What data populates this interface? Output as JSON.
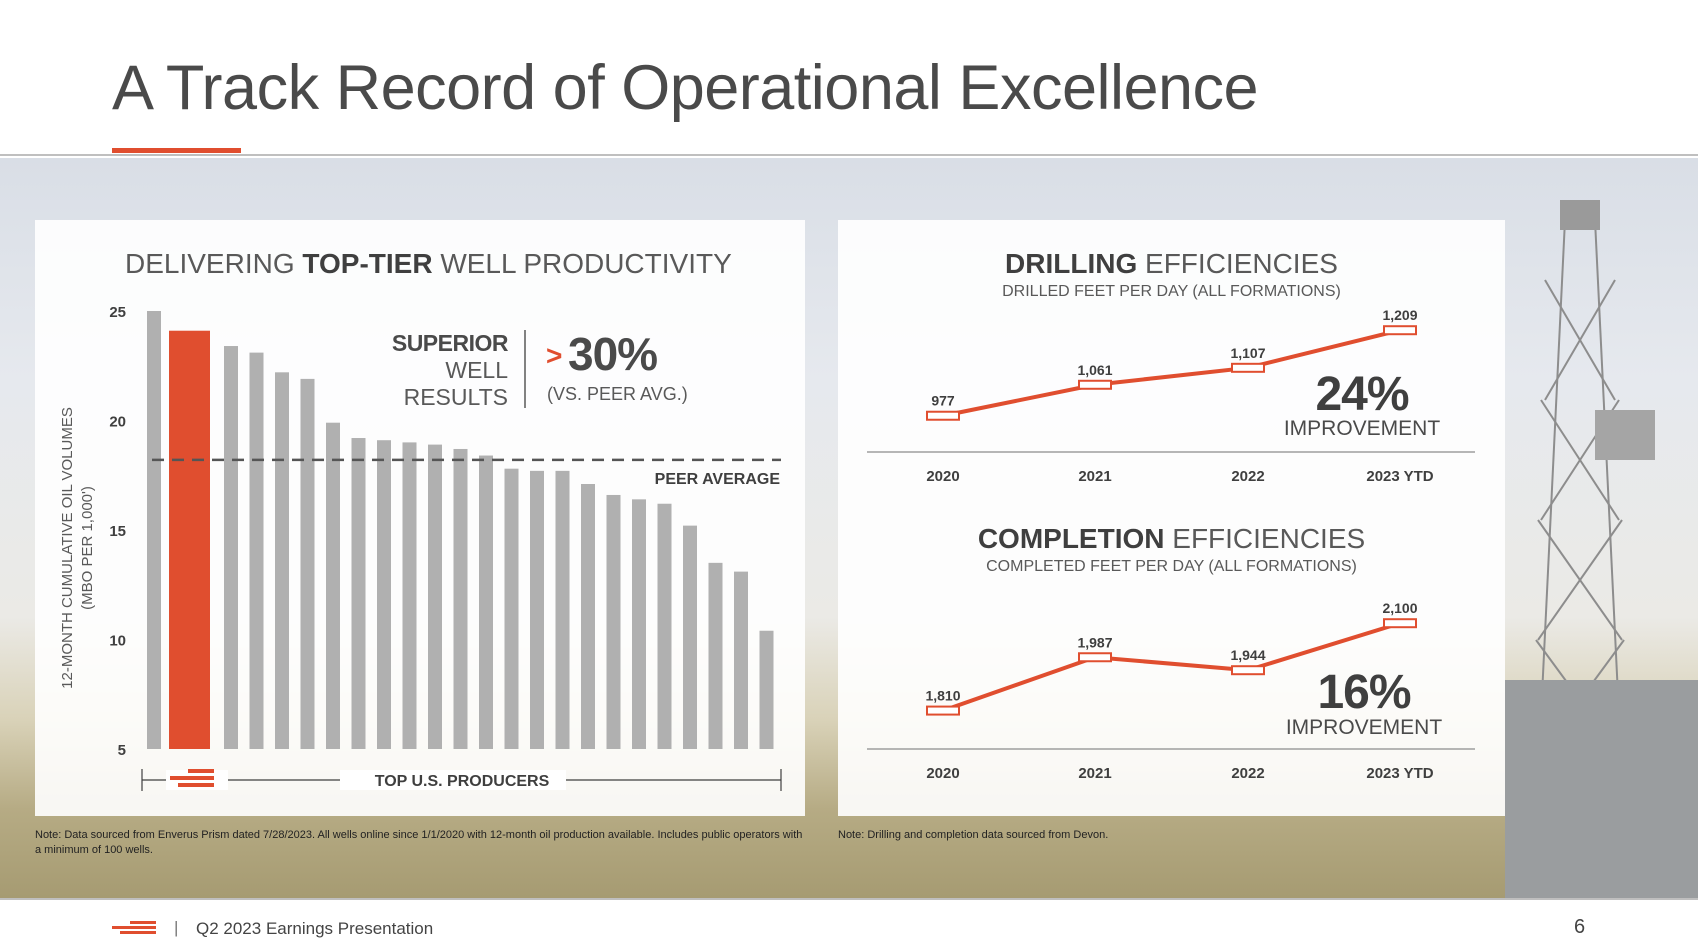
{
  "title": "A Track Record of Operational Excellence",
  "colors": {
    "accent": "#e04e2f",
    "bar_gray": "#b0b0b0",
    "text_dark": "#3f3f3f"
  },
  "left_panel": {
    "title_pre": "DELIVERING ",
    "title_bold": "TOP-TIER",
    "title_post": " WELL PRODUCTIVITY",
    "callout": {
      "bold": "SUPERIOR",
      "line2": "WELL",
      "line3": "RESULTS",
      "gt": ">",
      "pct": "30%",
      "vs": "(VS. PEER AVG.)"
    },
    "peer_label": "PEER AVERAGE",
    "producers_label": "TOP U.S. PRODUCERS"
  },
  "right_panel": {
    "drilling_title_bold": "DRILLING",
    "drilling_title_rest": " EFFICIENCIES",
    "drilling_sub": "DRILLED FEET PER DAY (ALL FORMATIONS)",
    "drilling_pct": "24%",
    "drilling_impr": "IMPROVEMENT",
    "completion_title_bold": "COMPLETION",
    "completion_title_rest": " EFFICIENCIES",
    "completion_sub": "COMPLETED FEET PER DAY (ALL FORMATIONS)",
    "completion_pct": "16%",
    "completion_impr": "IMPROVEMENT"
  },
  "notes": {
    "left": "Note: Data sourced from Enverus Prism dated 7/28/2023. All wells online since 1/1/2020 with 12-month oil production available. Includes public operators with a minimum of 100 wells.",
    "right": "Note: Drilling and completion data sourced from Devon."
  },
  "footer": {
    "separator": "|",
    "text": "Q2 2023 Earnings Presentation",
    "page": "6"
  },
  "chart_data": [
    {
      "type": "bar",
      "title": "DELIVERING TOP-TIER WELL PRODUCTIVITY",
      "ylabel": "12-MONTH CUMULATIVE OIL VOLUMES",
      "ylabel2": "(MBO PER 1,000')",
      "xlabel": "TOP U.S. PRODUCERS",
      "ylim": [
        5,
        25
      ],
      "yticks": [
        25,
        20,
        15,
        10,
        5
      ],
      "values": [
        25.0,
        24.1,
        23.4,
        23.1,
        22.2,
        21.9,
        19.9,
        19.2,
        19.1,
        19.0,
        18.9,
        18.7,
        18.4,
        17.8,
        17.7,
        17.7,
        17.1,
        16.6,
        16.4,
        16.2,
        15.2,
        13.5,
        13.1,
        10.4
      ],
      "highlight_index": 1,
      "peer_average": 18.2,
      "grid": false
    },
    {
      "type": "line",
      "title": "DRILLING EFFICIENCIES",
      "subtitle": "DRILLED FEET PER DAY (ALL FORMATIONS)",
      "categories": [
        "2020",
        "2021",
        "2022",
        "2023 YTD"
      ],
      "values": [
        977,
        1061,
        1107,
        1209
      ],
      "data_labels": [
        "977",
        "1,061",
        "1,107",
        "1,209"
      ],
      "ylim": [
        960,
        1215
      ]
    },
    {
      "type": "line",
      "title": "COMPLETION EFFICIENCIES",
      "subtitle": "COMPLETED FEET PER DAY (ALL FORMATIONS)",
      "categories": [
        "2020",
        "2021",
        "2022",
        "2023 YTD"
      ],
      "values": [
        1810,
        1987,
        1944,
        2100
      ],
      "data_labels": [
        "1,810",
        "1,987",
        "1,944",
        "2,100"
      ],
      "ylim": [
        1792,
        2104
      ]
    }
  ]
}
